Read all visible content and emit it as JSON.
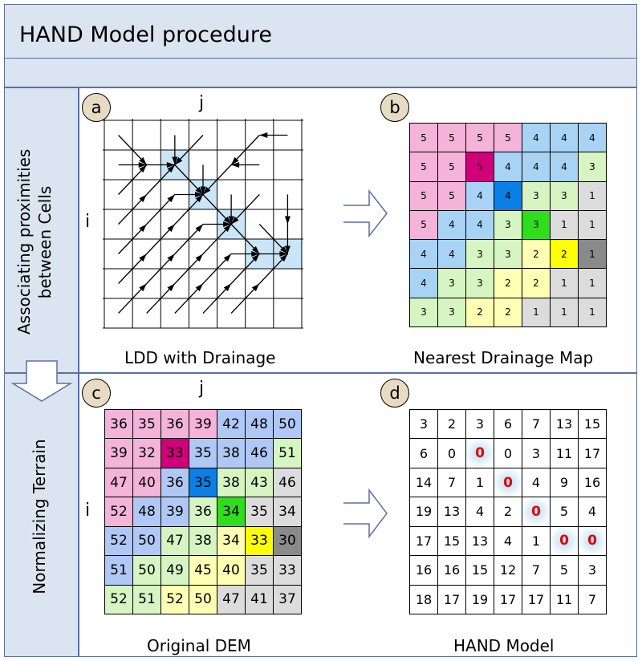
{
  "title": "HAND Model procedure",
  "row_labels": {
    "top": [
      "Associating proximities",
      "between Cells"
    ],
    "bottom": "Normalizing Terrain"
  },
  "panels": {
    "a": {
      "badge": "a",
      "caption": "LDD with Drainage",
      "col_label": "j",
      "row_label": "i"
    },
    "b": {
      "badge": "b",
      "caption": "Nearest Drainage Map"
    },
    "c": {
      "badge": "c",
      "caption": "Original DEM",
      "col_label": "j",
      "row_label": "i"
    },
    "d": {
      "badge": "d",
      "caption": "HAND Model"
    }
  },
  "palette": {
    "pink": "#f4b3d9",
    "magenta": "#d0007a",
    "blue": "#a9d3f5",
    "strong_blue": "#0a7fe6",
    "light_green": "#d6f5c2",
    "bright_green": "#2fdc1e",
    "light_yellow": "#ffffb3",
    "yellow": "#ffff00",
    "light_gray": "#dcdcdc",
    "dark_gray": "#8a8a8a",
    "dem_blue": "#b0c8f5",
    "drain_highlight": "#b8dcf5",
    "border": "#5a6fa8"
  },
  "nearest_drainage": [
    [
      5,
      5,
      5,
      5,
      4,
      4,
      4
    ],
    [
      5,
      5,
      5,
      4,
      4,
      4,
      3
    ],
    [
      5,
      5,
      4,
      4,
      3,
      3,
      1
    ],
    [
      5,
      4,
      4,
      3,
      3,
      1,
      1
    ],
    [
      4,
      4,
      3,
      3,
      2,
      2,
      1
    ],
    [
      4,
      3,
      3,
      2,
      2,
      1,
      1
    ],
    [
      3,
      3,
      2,
      2,
      1,
      1,
      1
    ]
  ],
  "original_dem": [
    [
      36,
      35,
      36,
      39,
      42,
      48,
      50
    ],
    [
      39,
      32,
      33,
      35,
      38,
      46,
      51
    ],
    [
      47,
      40,
      36,
      35,
      38,
      43,
      46
    ],
    [
      52,
      48,
      39,
      36,
      34,
      35,
      34
    ],
    [
      52,
      50,
      47,
      38,
      34,
      33,
      30
    ],
    [
      51,
      50,
      49,
      45,
      40,
      35,
      33
    ],
    [
      52,
      51,
      52,
      50,
      47,
      41,
      37
    ]
  ],
  "hand_model": [
    [
      3,
      2,
      3,
      6,
      7,
      13,
      15
    ],
    [
      6,
      0,
      0,
      0,
      3,
      11,
      17
    ],
    [
      14,
      7,
      1,
      0,
      4,
      9,
      16
    ],
    [
      19,
      13,
      4,
      2,
      0,
      5,
      4
    ],
    [
      17,
      15,
      13,
      4,
      1,
      0,
      0
    ],
    [
      16,
      16,
      15,
      12,
      7,
      5,
      3
    ],
    [
      18,
      17,
      19,
      17,
      17,
      11,
      7
    ]
  ],
  "drainage_cells": [
    [
      1,
      2
    ],
    [
      2,
      3
    ],
    [
      3,
      4
    ],
    [
      4,
      5
    ],
    [
      4,
      6
    ]
  ]
}
